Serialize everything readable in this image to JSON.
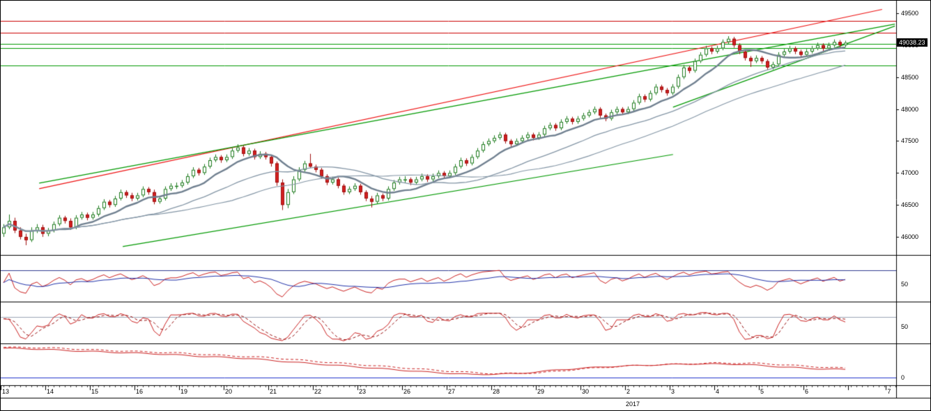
{
  "chart_data": {
    "type": "candlestick",
    "title": "",
    "instrument_last_price": "49038.23",
    "year_label": "2017",
    "y_axis": {
      "max": 49685,
      "min": 45717.4,
      "ticks": [
        49500,
        49000,
        48500,
        48000,
        47500,
        47000,
        46500,
        46000
      ]
    },
    "x_labels": [
      {
        "t": "13",
        "d": 0
      },
      {
        "t": "14",
        "d": 1
      },
      {
        "t": "15",
        "d": 2
      },
      {
        "t": "16",
        "d": 3
      },
      {
        "t": "19",
        "d": 4
      },
      {
        "t": "20",
        "d": 5
      },
      {
        "t": "21",
        "d": 6
      },
      {
        "t": "22",
        "d": 7
      },
      {
        "t": "23",
        "d": 8
      },
      {
        "t": "26",
        "d": 9
      },
      {
        "t": "27",
        "d": 10
      },
      {
        "t": "28",
        "d": 11
      },
      {
        "t": "29",
        "d": 12
      },
      {
        "t": "30",
        "d": 13
      },
      {
        "t": "2",
        "d": 14
      },
      {
        "t": "3",
        "d": 15
      },
      {
        "t": "4",
        "d": 16
      },
      {
        "t": "5",
        "d": 17
      },
      {
        "t": "6",
        "d": 18
      },
      {
        "t": "7",
        "d": 19.85
      }
    ],
    "candle_colors": {
      "up_fill": "#ffffff",
      "up_stroke": "#1b7a1b",
      "down_fill": "#d22020",
      "down_stroke": "#a01010"
    },
    "candles": [
      [
        46050,
        46200,
        46000,
        46150
      ],
      [
        46150,
        46350,
        46120,
        46250
      ],
      [
        46250,
        46300,
        46060,
        46100
      ],
      [
        46100,
        46150,
        45960,
        46000
      ],
      [
        46000,
        46050,
        45870,
        45950
      ],
      [
        45950,
        46150,
        45920,
        46100
      ],
      [
        46100,
        46200,
        46060,
        46150
      ],
      [
        46150,
        46190,
        46000,
        46050
      ],
      [
        46050,
        46140,
        46010,
        46100
      ],
      [
        46100,
        46240,
        46070,
        46200
      ],
      [
        46200,
        46340,
        46170,
        46300
      ],
      [
        46300,
        46330,
        46210,
        46250
      ],
      [
        46250,
        46290,
        46110,
        46150
      ],
      [
        46150,
        46340,
        46120,
        46300
      ],
      [
        46300,
        46390,
        46270,
        46350
      ],
      [
        46350,
        46380,
        46260,
        46300
      ],
      [
        46300,
        46390,
        46270,
        46350
      ],
      [
        46350,
        46490,
        46320,
        46450
      ],
      [
        46450,
        46590,
        46420,
        46550
      ],
      [
        46550,
        46580,
        46460,
        46500
      ],
      [
        46500,
        46640,
        46470,
        46600
      ],
      [
        46600,
        46740,
        46570,
        46700
      ],
      [
        46700,
        46730,
        46610,
        46650
      ],
      [
        46650,
        46690,
        46560,
        46600
      ],
      [
        46600,
        46690,
        46570,
        46650
      ],
      [
        46650,
        46790,
        46620,
        46750
      ],
      [
        46750,
        46780,
        46660,
        46700
      ],
      [
        46700,
        46740,
        46510,
        46550
      ],
      [
        46550,
        46640,
        46520,
        46600
      ],
      [
        46600,
        46790,
        46570,
        46750
      ],
      [
        46750,
        46840,
        46720,
        46800
      ],
      [
        46800,
        46850,
        46750,
        46800
      ],
      [
        46800,
        46890,
        46770,
        46850
      ],
      [
        46850,
        46990,
        46820,
        46950
      ],
      [
        46950,
        47090,
        46920,
        47050
      ],
      [
        47050,
        47080,
        46960,
        47000
      ],
      [
        47000,
        47140,
        46970,
        47100
      ],
      [
        47100,
        47240,
        47070,
        47200
      ],
      [
        47200,
        47290,
        47170,
        47250
      ],
      [
        47250,
        47280,
        47160,
        47200
      ],
      [
        47200,
        47290,
        47170,
        47250
      ],
      [
        47250,
        47390,
        47220,
        47350
      ],
      [
        47350,
        47450,
        47320,
        47400
      ],
      [
        47400,
        47430,
        47260,
        47300
      ],
      [
        47300,
        47390,
        47270,
        47350
      ],
      [
        47350,
        47380,
        47210,
        47250
      ],
      [
        47250,
        47340,
        47220,
        47300
      ],
      [
        47300,
        47330,
        47210,
        47250
      ],
      [
        47250,
        47280,
        47100,
        47150
      ],
      [
        47150,
        47180,
        46800,
        46850
      ],
      [
        46850,
        46900,
        46420,
        46500
      ],
      [
        46500,
        46750,
        46450,
        46700
      ],
      [
        46700,
        46950,
        46670,
        46900
      ],
      [
        46900,
        47090,
        46870,
        47050
      ],
      [
        47050,
        47190,
        47020,
        47150
      ],
      [
        47150,
        47300,
        47080,
        47100
      ],
      [
        47100,
        47130,
        47010,
        47050
      ],
      [
        47050,
        47080,
        46910,
        46950
      ],
      [
        46950,
        46980,
        46810,
        46850
      ],
      [
        46850,
        46940,
        46820,
        46900
      ],
      [
        46900,
        46930,
        46760,
        46800
      ],
      [
        46800,
        46830,
        46660,
        46700
      ],
      [
        46700,
        46790,
        46670,
        46750
      ],
      [
        46750,
        46840,
        46720,
        46800
      ],
      [
        46800,
        46830,
        46660,
        46700
      ],
      [
        46700,
        46730,
        46560,
        46600
      ],
      [
        46600,
        46640,
        46460,
        46550
      ],
      [
        46550,
        46690,
        46520,
        46650
      ],
      [
        46650,
        46680,
        46560,
        46600
      ],
      [
        46600,
        46790,
        46570,
        46750
      ],
      [
        46750,
        46890,
        46720,
        46850
      ],
      [
        46850,
        46940,
        46820,
        46900
      ],
      [
        46900,
        46950,
        46850,
        46900
      ],
      [
        46900,
        46930,
        46810,
        46850
      ],
      [
        46850,
        46940,
        46820,
        46900
      ],
      [
        46900,
        46990,
        46870,
        46950
      ],
      [
        46950,
        46980,
        46860,
        46900
      ],
      [
        46900,
        46990,
        46870,
        46950
      ],
      [
        46950,
        47040,
        46920,
        47000
      ],
      [
        47000,
        47030,
        46910,
        46950
      ],
      [
        46950,
        47040,
        46920,
        47000
      ],
      [
        47000,
        47140,
        46970,
        47100
      ],
      [
        47100,
        47240,
        47070,
        47200
      ],
      [
        47200,
        47230,
        47110,
        47150
      ],
      [
        47150,
        47290,
        47120,
        47250
      ],
      [
        47250,
        47390,
        47220,
        47350
      ],
      [
        47350,
        47490,
        47320,
        47450
      ],
      [
        47450,
        47540,
        47420,
        47500
      ],
      [
        47500,
        47590,
        47470,
        47550
      ],
      [
        47550,
        47640,
        47520,
        47600
      ],
      [
        47600,
        47630,
        47460,
        47500
      ],
      [
        47500,
        47530,
        47410,
        47450
      ],
      [
        47450,
        47540,
        47420,
        47500
      ],
      [
        47500,
        47590,
        47470,
        47550
      ],
      [
        47550,
        47640,
        47520,
        47600
      ],
      [
        47600,
        47630,
        47510,
        47550
      ],
      [
        47550,
        47640,
        47520,
        47600
      ],
      [
        47600,
        47740,
        47570,
        47700
      ],
      [
        47700,
        47790,
        47670,
        47750
      ],
      [
        47750,
        47780,
        47660,
        47700
      ],
      [
        47700,
        47840,
        47670,
        47800
      ],
      [
        47800,
        47890,
        47770,
        47850
      ],
      [
        47850,
        47880,
        47760,
        47800
      ],
      [
        47800,
        47890,
        47770,
        47850
      ],
      [
        47850,
        47940,
        47820,
        47900
      ],
      [
        47900,
        47990,
        47870,
        47950
      ],
      [
        47950,
        48040,
        47920,
        48000
      ],
      [
        48000,
        48030,
        47860,
        47900
      ],
      [
        47900,
        47930,
        47810,
        47850
      ],
      [
        47850,
        47990,
        47820,
        47950
      ],
      [
        47950,
        48040,
        47920,
        48000
      ],
      [
        48000,
        48030,
        47910,
        47950
      ],
      [
        47950,
        48040,
        47920,
        48000
      ],
      [
        48000,
        48140,
        47970,
        48100
      ],
      [
        48100,
        48240,
        48070,
        48200
      ],
      [
        48200,
        48230,
        48110,
        48150
      ],
      [
        48150,
        48290,
        48120,
        48250
      ],
      [
        48250,
        48390,
        48220,
        48350
      ],
      [
        48350,
        48380,
        48260,
        48300
      ],
      [
        48300,
        48330,
        48210,
        48250
      ],
      [
        48250,
        48390,
        48220,
        48350
      ],
      [
        48350,
        48540,
        48320,
        48500
      ],
      [
        48500,
        48690,
        48470,
        48650
      ],
      [
        48650,
        48680,
        48560,
        48600
      ],
      [
        48600,
        48790,
        48570,
        48750
      ],
      [
        48750,
        48890,
        48720,
        48850
      ],
      [
        48850,
        48990,
        48820,
        48950
      ],
      [
        48950,
        48980,
        48860,
        48900
      ],
      [
        48900,
        48990,
        48870,
        48950
      ],
      [
        48950,
        49090,
        48920,
        49050
      ],
      [
        49050,
        49140,
        49020,
        49100
      ],
      [
        49100,
        49130,
        48960,
        49000
      ],
      [
        49000,
        49030,
        48860,
        48900
      ],
      [
        48900,
        48930,
        48760,
        48800
      ],
      [
        48800,
        48830,
        48660,
        48750
      ],
      [
        48750,
        48840,
        48720,
        48800
      ],
      [
        48800,
        48830,
        48710,
        48750
      ],
      [
        48750,
        48780,
        48610,
        48650
      ],
      [
        48650,
        48740,
        48620,
        48700
      ],
      [
        48700,
        48890,
        48670,
        48850
      ],
      [
        48850,
        48940,
        48820,
        48900
      ],
      [
        48900,
        48990,
        48870,
        48950
      ],
      [
        48950,
        48980,
        48860,
        48900
      ],
      [
        48900,
        48930,
        48810,
        48850
      ],
      [
        48850,
        48940,
        48820,
        48900
      ],
      [
        48900,
        48990,
        48870,
        48950
      ],
      [
        48950,
        49040,
        48920,
        49000
      ],
      [
        49000,
        49030,
        48910,
        48950
      ],
      [
        48950,
        49040,
        48920,
        49000
      ],
      [
        49000,
        49090,
        48970,
        49050
      ],
      [
        49050,
        49080,
        48960,
        49000
      ],
      [
        49000,
        49070,
        48970,
        49038.23
      ]
    ],
    "overlays": {
      "moving_averages": [
        {
          "period": 10,
          "color": "#708090",
          "width": 2.4
        },
        {
          "period": 26,
          "color": "#8496a6",
          "width": 1.3
        },
        {
          "period": 42,
          "color": "#8496a6",
          "width": 1.1
        }
      ],
      "h_levels": [
        {
          "price": 49380,
          "color": "#cc0000"
        },
        {
          "price": 49190,
          "color": "#cc0000"
        },
        {
          "price": 49020,
          "color": "#009900"
        },
        {
          "price": 48950,
          "color": "#009900"
        },
        {
          "price": 48680,
          "color": "#009900"
        }
      ],
      "trendlines": [
        {
          "i1": 6.4,
          "p1": 46754,
          "i2": 157.6,
          "p2": 49560,
          "color": "#ee1111"
        },
        {
          "i1": 6.4,
          "p1": 46842,
          "i2": 159.9,
          "p2": 49330,
          "color": "#009900"
        },
        {
          "i1": 21.4,
          "p1": 45850,
          "i2": 120.1,
          "p2": 47290,
          "color": "#009900"
        },
        {
          "i1": 120.1,
          "p1": 48030,
          "i2": 159.9,
          "p2": 49300,
          "color": "#009900"
        }
      ]
    },
    "panels": [
      {
        "name": "oscillator-1",
        "range": [
          0,
          133
        ],
        "level": 90,
        "level_color": "#2f3c8f",
        "scale_label": "50",
        "scale_value": 50,
        "series": [
          {
            "calc": "rsi",
            "period": 6,
            "color": "#cc2222",
            "dash": false
          },
          {
            "calc": "rsi_smooth",
            "period": 14,
            "color": "#2233aa",
            "dash": false
          }
        ]
      },
      {
        "name": "stochastic",
        "range": [
          0,
          125
        ],
        "level": 80,
        "level_color": "#9aa4b4",
        "scale_label": "50",
        "scale_value": 50,
        "series": [
          {
            "calc": "stoch_k",
            "period": 6,
            "color": "#cc2222",
            "dash": false
          },
          {
            "calc": "stoch_d",
            "period": 6,
            "color": "#991111",
            "dash": true
          }
        ]
      },
      {
        "name": "oscillator-3",
        "range": [
          -0.18,
          0.82
        ],
        "level": 0,
        "level_color": "#2233cc",
        "scale_label": "0",
        "scale_value": 0,
        "series": [
          {
            "calc": "points",
            "color": "#cc2222",
            "dash": false
          },
          {
            "calc": "points_lag",
            "color": "#cc2222",
            "dash": true
          }
        ],
        "points": [
          [
            0,
            0.72
          ],
          [
            6,
            0.7
          ],
          [
            12,
            0.66
          ],
          [
            20,
            0.62
          ],
          [
            28,
            0.58
          ],
          [
            36,
            0.52
          ],
          [
            44,
            0.47
          ],
          [
            52,
            0.38
          ],
          [
            60,
            0.3
          ],
          [
            68,
            0.22
          ],
          [
            76,
            0.14
          ],
          [
            84,
            0.08
          ],
          [
            92,
            0.1
          ],
          [
            100,
            0.2
          ],
          [
            108,
            0.27
          ],
          [
            116,
            0.31
          ],
          [
            124,
            0.34
          ],
          [
            132,
            0.33
          ],
          [
            138,
            0.28
          ],
          [
            144,
            0.23
          ],
          [
            151,
            0.2
          ]
        ]
      }
    ]
  }
}
